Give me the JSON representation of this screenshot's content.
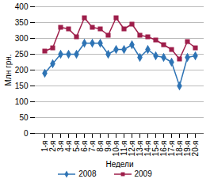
{
  "chart_data": {
    "type": "line",
    "x_label": "Недели",
    "y_label": "Млн грн.",
    "categories": [
      "1-я",
      "2-я",
      "3-я",
      "4-я",
      "5-я",
      "6-я",
      "7-я",
      "8-я",
      "9-я",
      "10-я",
      "11-я",
      "12-я",
      "13-я",
      "14-я",
      "15-я",
      "16-я",
      "17-я",
      "18-я",
      "19-я",
      "20-я"
    ],
    "series": [
      {
        "name": "2008",
        "color": "#2f74b5",
        "marker": "diamond",
        "values": [
          190,
          220,
          250,
          250,
          250,
          285,
          285,
          285,
          250,
          265,
          265,
          280,
          240,
          265,
          245,
          240,
          225,
          150,
          240,
          245
        ]
      },
      {
        "name": "2009",
        "color": "#9e1e4a",
        "marker": "square",
        "values": [
          260,
          270,
          335,
          330,
          305,
          365,
          335,
          330,
          310,
          365,
          330,
          345,
          310,
          305,
          295,
          280,
          265,
          235,
          290,
          270
        ]
      }
    ],
    "ylim": [
      0,
      400
    ],
    "yticks": [
      0,
      50,
      100,
      150,
      200,
      250,
      300,
      350,
      400
    ],
    "grid": true,
    "legend": "bottom"
  }
}
